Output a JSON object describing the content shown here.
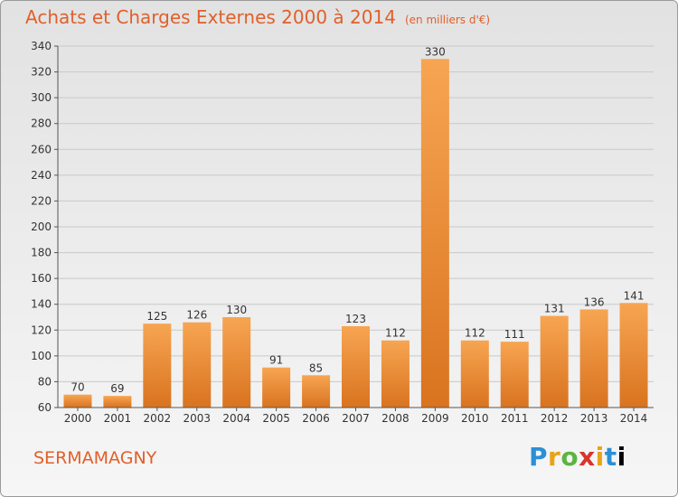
{
  "title": "Achats et Charges Externes 2000 à 2014",
  "unit_note": "(en milliers d'€)",
  "town": "SERMAMAGNY",
  "logo": "Proxiti",
  "colors": {
    "accent": "#e0602a",
    "bar_top": "#f7a552",
    "bar_bottom": "#d9731f"
  },
  "chart_data": {
    "type": "bar",
    "categories": [
      "2000",
      "2001",
      "2002",
      "2003",
      "2004",
      "2005",
      "2006",
      "2007",
      "2008",
      "2009",
      "2010",
      "2011",
      "2012",
      "2013",
      "2014"
    ],
    "values": [
      70,
      69,
      125,
      126,
      130,
      91,
      85,
      123,
      112,
      330,
      112,
      111,
      131,
      136,
      141
    ],
    "ylim": [
      60,
      340
    ],
    "yticks": [
      60,
      80,
      100,
      120,
      140,
      160,
      180,
      200,
      220,
      240,
      260,
      280,
      300,
      320,
      340
    ],
    "grid": true,
    "data_labels": true
  }
}
